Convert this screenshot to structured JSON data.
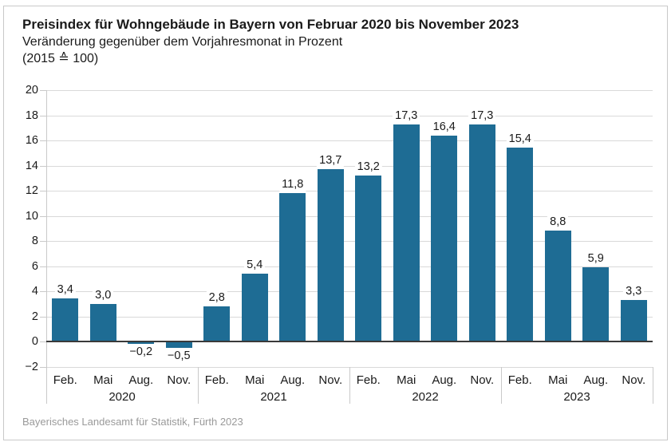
{
  "header": {
    "title": "Preisindex für Wohngebäude in Bayern von Februar 2020 bis November 2023",
    "subtitle": "Veränderung gegenüber dem Vorjahresmonat in Prozent",
    "base_note": "(2015 ≙ 100)"
  },
  "footer": {
    "source": "Bayerisches Landesamt für Statistik, Fürth 2023"
  },
  "colors": {
    "bar": "#1e6c94",
    "grid": "#d9d9d9",
    "zero_line": "#3a3a3a",
    "axis": "#c9c9c9",
    "text": "#1a1a1a",
    "muted_text": "#9a9a9a",
    "frame_border": "#c9c9c9",
    "background": "#ffffff"
  },
  "chart_data": {
    "type": "bar",
    "title": "Preisindex für Wohngebäude in Bayern von Februar 2020 bis November 2023",
    "subtitle": "Veränderung gegenüber dem Vorjahresmonat in Prozent",
    "base_note": "(2015 ≙ 100)",
    "xlabel": "",
    "ylabel": "",
    "ylim": [
      -2,
      20
    ],
    "ytick_step": 2,
    "grid": true,
    "legend": false,
    "bar_color": "#1e6c94",
    "yticks": [
      {
        "value": 20,
        "label": "20"
      },
      {
        "value": 18,
        "label": "18"
      },
      {
        "value": 16,
        "label": "16"
      },
      {
        "value": 14,
        "label": "14"
      },
      {
        "value": 12,
        "label": "12"
      },
      {
        "value": 10,
        "label": "10"
      },
      {
        "value": 8,
        "label": "8"
      },
      {
        "value": 6,
        "label": "6"
      },
      {
        "value": 4,
        "label": "4"
      },
      {
        "value": 2,
        "label": "2"
      },
      {
        "value": 0,
        "label": "0"
      },
      {
        "value": -2,
        "label": "−2"
      }
    ],
    "categories": [
      "Feb. 2020",
      "Mai 2020",
      "Aug. 2020",
      "Nov. 2020",
      "Feb. 2021",
      "Mai 2021",
      "Aug. 2021",
      "Nov. 2021",
      "Feb. 2022",
      "Mai 2022",
      "Aug. 2022",
      "Nov. 2022",
      "Feb. 2023",
      "Mai 2023",
      "Aug. 2023",
      "Nov. 2023"
    ],
    "values": [
      3.4,
      3.0,
      -0.2,
      -0.5,
      2.8,
      5.4,
      11.8,
      13.7,
      13.2,
      17.3,
      16.4,
      17.3,
      15.4,
      8.8,
      5.9,
      3.3
    ],
    "value_labels": [
      "3,4",
      "3,0",
      "−0,2",
      "−0,5",
      "2,8",
      "5,4",
      "11,8",
      "13,7",
      "13,2",
      "17,3",
      "16,4",
      "17,3",
      "15,4",
      "8,8",
      "5,9",
      "3,3"
    ],
    "groups": [
      {
        "year": "2020",
        "months": [
          "Feb.",
          "Mai",
          "Aug.",
          "Nov."
        ]
      },
      {
        "year": "2021",
        "months": [
          "Feb.",
          "Mai",
          "Aug.",
          "Nov."
        ]
      },
      {
        "year": "2022",
        "months": [
          "Feb.",
          "Mai",
          "Aug.",
          "Nov."
        ]
      },
      {
        "year": "2023",
        "months": [
          "Feb.",
          "Mai",
          "Aug.",
          "Nov."
        ]
      }
    ]
  }
}
